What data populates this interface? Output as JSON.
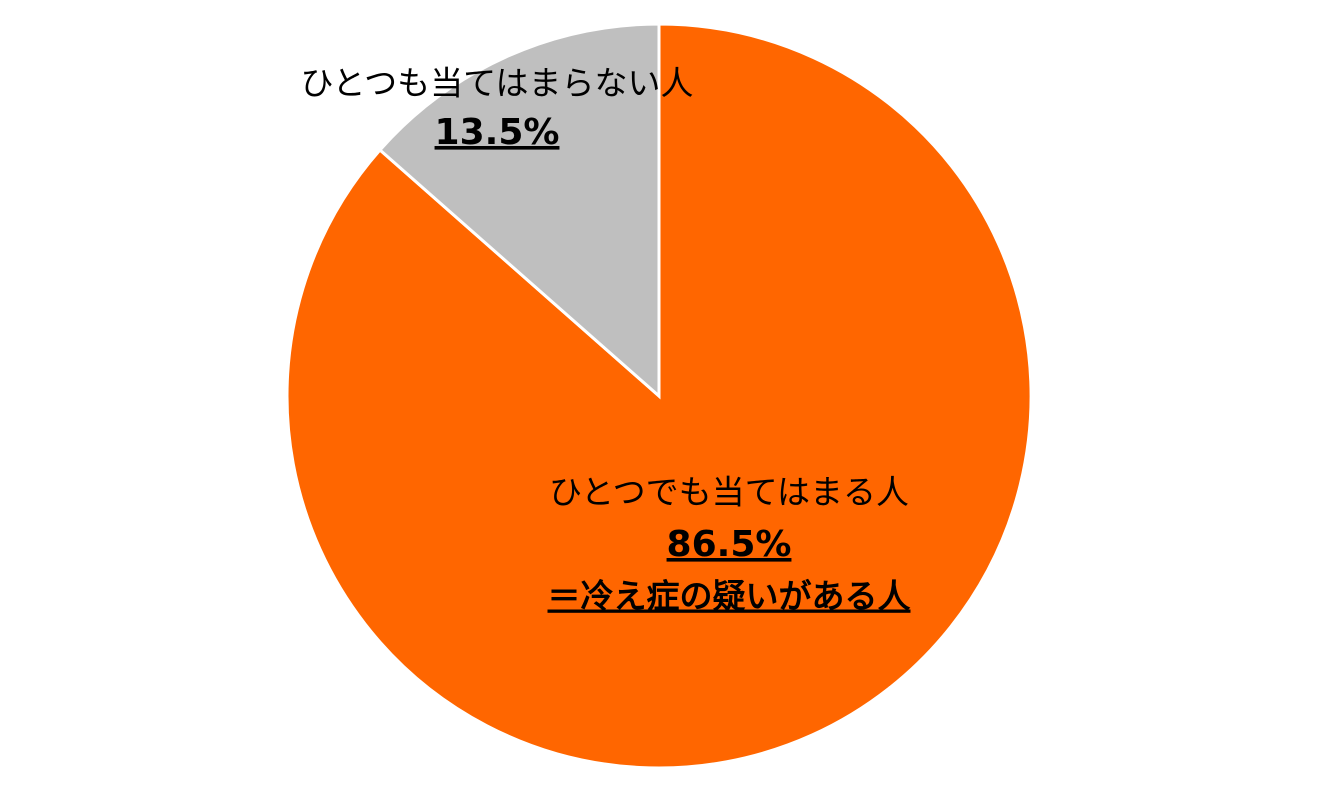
{
  "chart_data": {
    "type": "pie",
    "categories": [
      "ひとつでも当てはまる人",
      "ひとつも当てはまらない人"
    ],
    "values": [
      86.5,
      13.5
    ],
    "value_labels": [
      "86.5%",
      "13.5%"
    ],
    "colors": [
      "#ff6600",
      "#bfbfbf"
    ],
    "annotation": "＝冷え症の疑いがある人"
  }
}
